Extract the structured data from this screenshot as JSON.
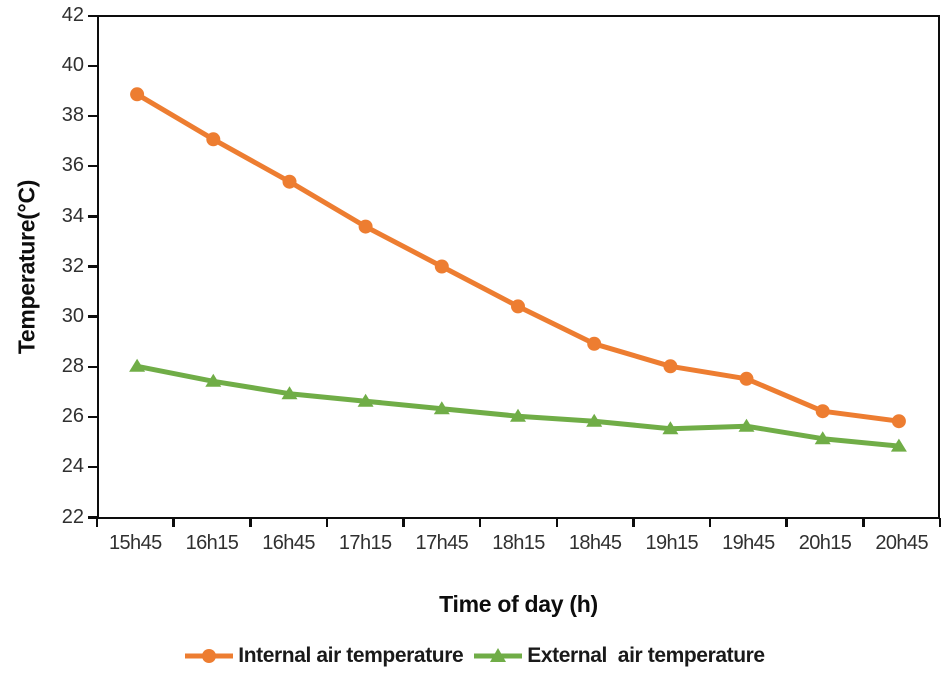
{
  "chart_data": {
    "type": "line",
    "title": "",
    "xlabel": "Time of day (h)",
    "ylabel": "Temperature(°C)",
    "categories": [
      "15h45",
      "16h15",
      "16h45",
      "17h15",
      "17h45",
      "18h15",
      "18h45",
      "19h15",
      "19h45",
      "20h15",
      "20h45"
    ],
    "y_ticks": [
      42,
      40,
      38,
      36,
      34,
      32,
      30,
      28,
      26,
      24,
      22
    ],
    "ylim": [
      22,
      42
    ],
    "grid": false,
    "legend_position": "bottom",
    "series": [
      {
        "name": "Internal air temperature",
        "color": "#ED7D31",
        "marker": "circle",
        "values": [
          38.9,
          37.1,
          35.4,
          33.6,
          32.0,
          30.4,
          28.9,
          28.0,
          27.5,
          26.2,
          25.8
        ]
      },
      {
        "name": "External  air temperature",
        "color": "#70AD47",
        "marker": "triangle",
        "values": [
          28.0,
          27.4,
          26.9,
          26.6,
          26.3,
          26.0,
          25.8,
          25.5,
          25.6,
          25.1,
          24.8
        ]
      }
    ]
  },
  "colors": {
    "axis": "#0d0d0d",
    "tick_text": "#303030",
    "internal_series": "#ED7D31",
    "external_series": "#70AD47"
  }
}
